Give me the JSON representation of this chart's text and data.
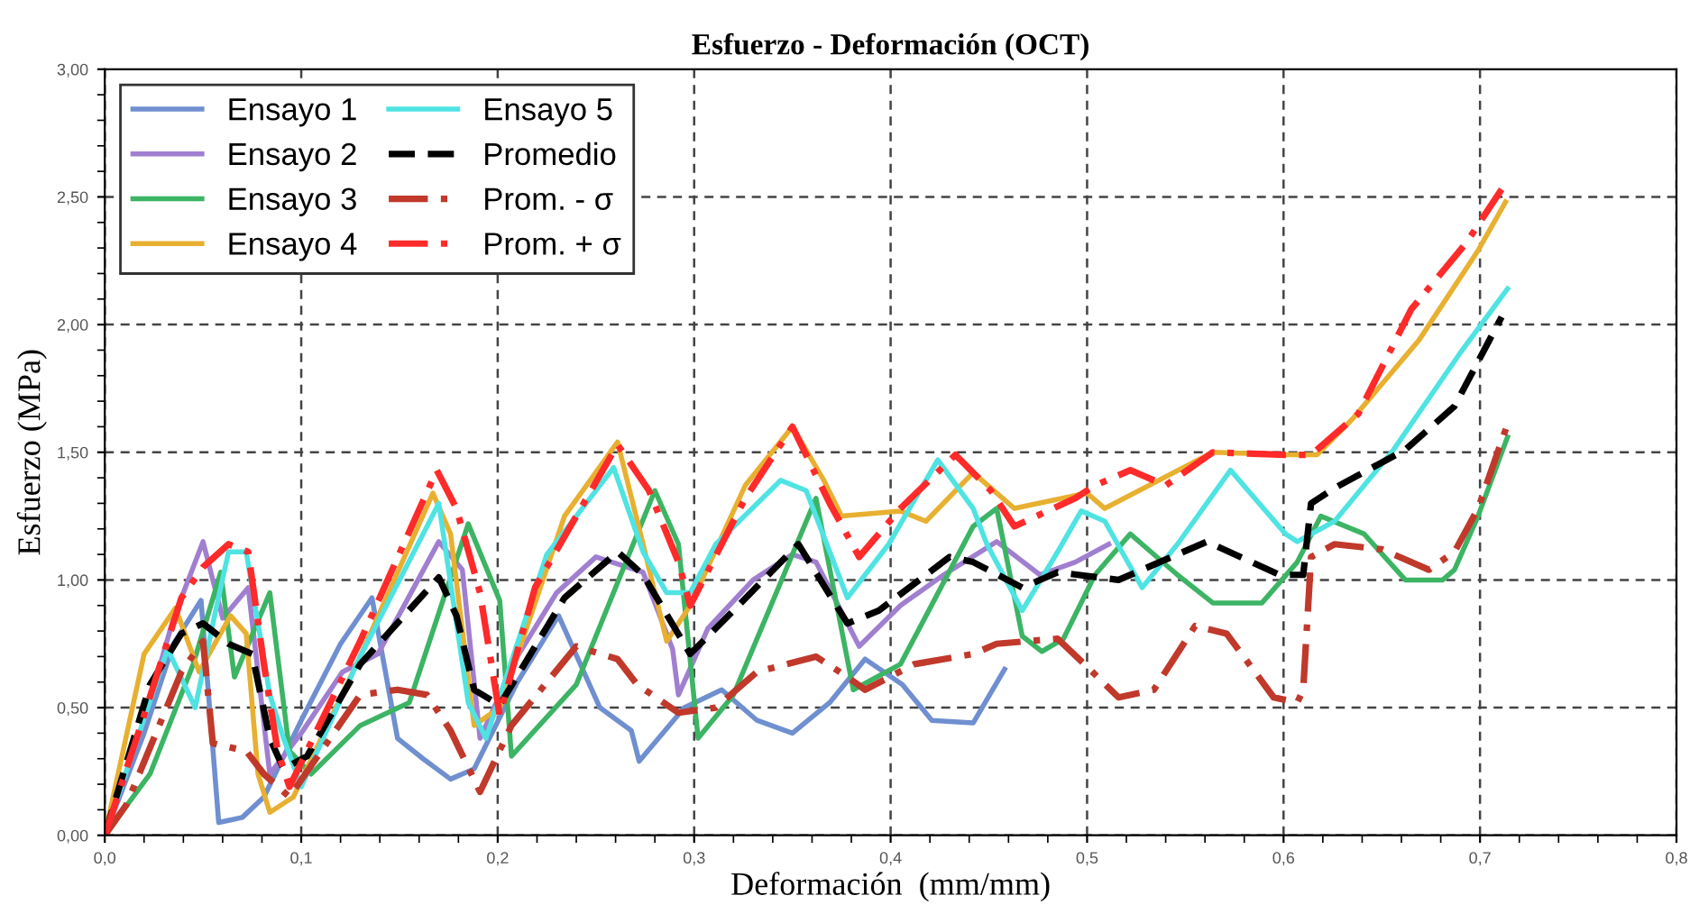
{
  "chart_data": {
    "type": "line",
    "title": "Esfuerzo - Deformación (OCT)",
    "xlabel": "Deformación  (mm/mm)",
    "ylabel": "Esfuerzo (MPa)",
    "xlim": [
      0,
      0.8
    ],
    "xticks": [
      {
        "value": 0,
        "label": "0,0"
      },
      {
        "value": 0.1,
        "label": "0,1"
      },
      {
        "value": 0.2,
        "label": "0,2"
      },
      {
        "value": 0.3,
        "label": "0,3"
      },
      {
        "value": 0.4,
        "label": "0,4"
      },
      {
        "value": 0.5,
        "label": "0,5"
      },
      {
        "value": 0.6,
        "label": "0,6"
      },
      {
        "value": 0.7,
        "label": "0,7"
      },
      {
        "value": 0.8,
        "label": "0,8"
      }
    ],
    "ylim": [
      0,
      3
    ],
    "yticks": [
      {
        "value": 0,
        "label": "0,00"
      },
      {
        "value": 0.5,
        "label": "0,50"
      },
      {
        "value": 1,
        "label": "1,00"
      },
      {
        "value": 1.5,
        "label": "1,50"
      },
      {
        "value": 2,
        "label": "2,00"
      },
      {
        "value": 2.5,
        "label": "2,50"
      },
      {
        "value": 3,
        "label": "3,00"
      }
    ],
    "grid": true,
    "legend": "top left",
    "marker": "none",
    "series": [
      {
        "name": "Ensayo 1",
        "color": "#6f8fd0",
        "line_style": "solid",
        "x": [
          0,
          0.02,
          0.035,
          0.049,
          0.058,
          0.07,
          0.081,
          0.1,
          0.12,
          0.136,
          0.149,
          0.162,
          0.176,
          0.188,
          0.21,
          0.231,
          0.252,
          0.268,
          0.272,
          0.295,
          0.314,
          0.332,
          0.35,
          0.369,
          0.387,
          0.406,
          0.421,
          0.442,
          0.458
        ],
        "values": [
          0,
          0.4,
          0.75,
          0.92,
          0.05,
          0.07,
          0.15,
          0.45,
          0.75,
          0.93,
          0.38,
          0.3,
          0.22,
          0.26,
          0.6,
          0.86,
          0.5,
          0.41,
          0.29,
          0.5,
          0.57,
          0.45,
          0.4,
          0.52,
          0.69,
          0.59,
          0.45,
          0.44,
          0.65
        ]
      },
      {
        "name": "Ensayo 2",
        "color": "#a07fd0",
        "line_style": "solid",
        "x": [
          0,
          0.02,
          0.035,
          0.05,
          0.06,
          0.073,
          0.084,
          0.1,
          0.121,
          0.139,
          0.17,
          0.182,
          0.191,
          0.21,
          0.23,
          0.25,
          0.274,
          0.289,
          0.292,
          0.307,
          0.33,
          0.35,
          0.362,
          0.384,
          0.405,
          0.427,
          0.454,
          0.476,
          0.494,
          0.511
        ],
        "values": [
          0,
          0.45,
          0.85,
          1.15,
          0.85,
          0.97,
          0.24,
          0.4,
          0.64,
          0.71,
          1.15,
          1.04,
          0.38,
          0.7,
          0.95,
          1.09,
          1.03,
          0.73,
          0.55,
          0.81,
          1.0,
          1.1,
          1.07,
          0.74,
          0.9,
          1.02,
          1.15,
          1.02,
          1.07,
          1.14
        ]
      },
      {
        "name": "Ensayo 3",
        "color": "#3cb464",
        "line_style": "solid",
        "x": [
          0,
          0.023,
          0.045,
          0.059,
          0.066,
          0.084,
          0.094,
          0.105,
          0.13,
          0.155,
          0.185,
          0.201,
          0.207,
          0.24,
          0.28,
          0.292,
          0.302,
          0.32,
          0.362,
          0.381,
          0.405,
          0.442,
          0.454,
          0.467,
          0.477,
          0.488,
          0.504,
          0.522,
          0.546,
          0.564,
          0.589,
          0.607,
          0.619,
          0.641,
          0.662,
          0.681,
          0.687,
          0.699,
          0.714
        ],
        "values": [
          0,
          0.24,
          0.67,
          1.03,
          0.62,
          0.95,
          0.33,
          0.24,
          0.43,
          0.52,
          1.22,
          0.92,
          0.31,
          0.59,
          1.35,
          1.14,
          0.38,
          0.55,
          1.32,
          0.57,
          0.67,
          1.21,
          1.28,
          0.78,
          0.72,
          0.77,
          1.02,
          1.18,
          1.02,
          0.91,
          0.91,
          1.07,
          1.25,
          1.18,
          1.0,
          1.0,
          1.04,
          1.25,
          1.56
        ]
      },
      {
        "name": "Ensayo 4",
        "color": "#e8b030",
        "line_style": "solid",
        "x": [
          0,
          0.02,
          0.036,
          0.048,
          0.064,
          0.072,
          0.078,
          0.084,
          0.096,
          0.13,
          0.167,
          0.176,
          0.188,
          0.201,
          0.234,
          0.261,
          0.274,
          0.286,
          0.298,
          0.326,
          0.35,
          0.366,
          0.375,
          0.405,
          0.418,
          0.442,
          0.463,
          0.5,
          0.509,
          0.564,
          0.601,
          0.617,
          0.635,
          0.669,
          0.699,
          0.713
        ],
        "values": [
          0,
          0.71,
          0.89,
          0.64,
          0.86,
          0.79,
          0.24,
          0.09,
          0.15,
          0.7,
          1.34,
          1.18,
          0.43,
          0.5,
          1.25,
          1.54,
          1.14,
          0.76,
          0.9,
          1.37,
          1.6,
          1.39,
          1.25,
          1.27,
          1.23,
          1.42,
          1.28,
          1.34,
          1.28,
          1.5,
          1.49,
          1.49,
          1.63,
          1.94,
          2.29,
          2.48
        ]
      },
      {
        "name": "Ensayo 5",
        "color": "#4fe3e3",
        "line_style": "solid",
        "x": [
          0,
          0.032,
          0.046,
          0.057,
          0.063,
          0.072,
          0.084,
          0.091,
          0.1,
          0.13,
          0.17,
          0.185,
          0.194,
          0.225,
          0.259,
          0.274,
          0.286,
          0.298,
          0.311,
          0.344,
          0.357,
          0.378,
          0.399,
          0.424,
          0.442,
          0.449,
          0.467,
          0.485,
          0.497,
          0.509,
          0.528,
          0.546,
          0.573,
          0.601,
          0.607,
          0.626,
          0.656,
          0.69,
          0.714
        ],
        "values": [
          0,
          0.73,
          0.5,
          0.9,
          1.11,
          1.11,
          0.55,
          0.38,
          0.19,
          0.7,
          1.3,
          0.52,
          0.38,
          1.1,
          1.44,
          1.11,
          0.95,
          0.95,
          1.14,
          1.39,
          1.35,
          0.93,
          1.14,
          1.47,
          1.28,
          1.14,
          0.88,
          1.11,
          1.27,
          1.23,
          0.97,
          1.14,
          1.43,
          1.18,
          1.15,
          1.23,
          1.51,
          1.89,
          2.14
        ]
      },
      {
        "name": "Promedio",
        "color": "#000000",
        "line_style": "dashed",
        "x": [
          0,
          0.023,
          0.039,
          0.05,
          0.063,
          0.075,
          0.084,
          0.091,
          0.103,
          0.13,
          0.17,
          0.179,
          0.188,
          0.201,
          0.234,
          0.261,
          0.274,
          0.298,
          0.32,
          0.353,
          0.378,
          0.394,
          0.43,
          0.442,
          0.467,
          0.485,
          0.516,
          0.561,
          0.598,
          0.61,
          0.614,
          0.626,
          0.662,
          0.687,
          0.711
        ],
        "values": [
          0,
          0.59,
          0.79,
          0.83,
          0.75,
          0.71,
          0.38,
          0.26,
          0.31,
          0.67,
          1.01,
          0.86,
          0.57,
          0.51,
          0.93,
          1.11,
          1.02,
          0.71,
          0.88,
          1.14,
          0.83,
          0.88,
          1.09,
          1.07,
          0.97,
          1.03,
          1.0,
          1.15,
          1.02,
          1.02,
          1.3,
          1.36,
          1.51,
          1.68,
          2.03
        ]
      },
      {
        "name": "Prom. - σ",
        "color": "#c0392b",
        "line_style": "dashdot",
        "x": [
          0,
          0.011,
          0.039,
          0.05,
          0.055,
          0.072,
          0.081,
          0.094,
          0.13,
          0.149,
          0.164,
          0.176,
          0.191,
          0.207,
          0.24,
          0.261,
          0.271,
          0.292,
          0.311,
          0.332,
          0.362,
          0.378,
          0.387,
          0.412,
          0.442,
          0.454,
          0.485,
          0.5,
          0.516,
          0.534,
          0.555,
          0.571,
          0.595,
          0.607,
          0.61,
          0.614,
          0.626,
          0.65,
          0.674,
          0.687,
          0.699,
          0.714
        ],
        "values": [
          0,
          0.12,
          0.64,
          0.76,
          0.36,
          0.33,
          0.24,
          0.15,
          0.55,
          0.57,
          0.55,
          0.41,
          0.17,
          0.43,
          0.74,
          0.69,
          0.59,
          0.48,
          0.5,
          0.64,
          0.7,
          0.62,
          0.57,
          0.67,
          0.71,
          0.75,
          0.77,
          0.66,
          0.54,
          0.57,
          0.82,
          0.79,
          0.54,
          0.52,
          0.57,
          1.09,
          1.14,
          1.12,
          1.04,
          1.11,
          1.28,
          1.61
        ]
      },
      {
        "name": "Prom. + σ",
        "color": "#ff2a2a",
        "line_style": "dashdot",
        "x": [
          0,
          0.02,
          0.039,
          0.05,
          0.063,
          0.073,
          0.081,
          0.088,
          0.094,
          0.13,
          0.169,
          0.179,
          0.191,
          0.201,
          0.219,
          0.261,
          0.277,
          0.292,
          0.298,
          0.326,
          0.35,
          0.369,
          0.384,
          0.405,
          0.433,
          0.451,
          0.463,
          0.494,
          0.504,
          0.522,
          0.54,
          0.564,
          0.601,
          0.614,
          0.638,
          0.665,
          0.693,
          0.711
        ],
        "values": [
          0,
          0.47,
          0.93,
          1.05,
          1.14,
          1.11,
          0.67,
          0.33,
          0.19,
          0.76,
          1.43,
          1.28,
          0.95,
          0.47,
          0.97,
          1.53,
          1.35,
          1.07,
          0.9,
          1.32,
          1.6,
          1.3,
          1.09,
          1.28,
          1.49,
          1.35,
          1.21,
          1.32,
          1.37,
          1.43,
          1.37,
          1.5,
          1.49,
          1.49,
          1.65,
          2.06,
          2.32,
          2.53
        ]
      }
    ]
  }
}
